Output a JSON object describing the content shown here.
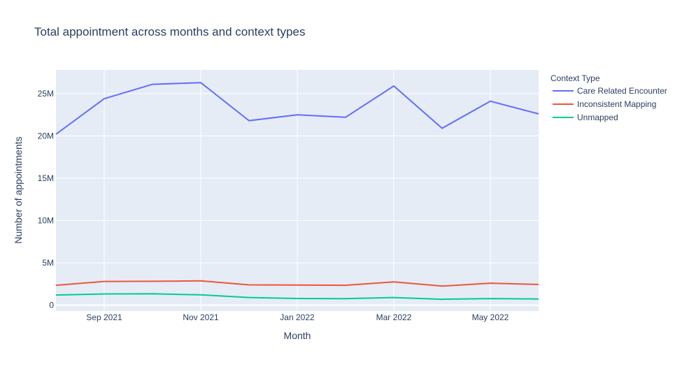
{
  "chart_data": {
    "type": "line",
    "title": "Total appointment across months and context types",
    "xlabel": "Month",
    "ylabel": "Number of appointments",
    "x": [
      "2021-08",
      "2021-09",
      "2021-10",
      "2021-11",
      "2021-12",
      "2022-01",
      "2022-02",
      "2022-03",
      "2022-04",
      "2022-05",
      "2022-06"
    ],
    "xticks": [
      {
        "month_index": 1,
        "label": "Sep 2021"
      },
      {
        "month_index": 3,
        "label": "Nov 2021"
      },
      {
        "month_index": 5,
        "label": "Jan 2022"
      },
      {
        "month_index": 7,
        "label": "Mar 2022"
      },
      {
        "month_index": 9,
        "label": "May 2022"
      }
    ],
    "yticks": [
      {
        "value": 0,
        "label": "0"
      },
      {
        "value": 5000000,
        "label": "5M"
      },
      {
        "value": 10000000,
        "label": "10M"
      },
      {
        "value": 15000000,
        "label": "15M"
      },
      {
        "value": 20000000,
        "label": "20M"
      },
      {
        "value": 25000000,
        "label": "25M"
      }
    ],
    "ylim": [
      -700000,
      27800000
    ],
    "legend": {
      "title": "Context Type",
      "position": "right"
    },
    "grid": true,
    "series": [
      {
        "name": "Care Related Encounter",
        "color": "#636efa",
        "values": [
          20200000,
          24400000,
          26100000,
          26300000,
          21800000,
          22500000,
          22200000,
          25900000,
          20900000,
          24100000,
          22600000
        ]
      },
      {
        "name": "Inconsistent Mapping",
        "color": "#ef553b",
        "values": [
          2350000,
          2800000,
          2820000,
          2870000,
          2400000,
          2380000,
          2350000,
          2750000,
          2250000,
          2600000,
          2450000
        ]
      },
      {
        "name": "Unmapped",
        "color": "#00cc96",
        "values": [
          1200000,
          1320000,
          1340000,
          1220000,
          900000,
          790000,
          770000,
          900000,
          700000,
          780000,
          730000
        ]
      }
    ]
  }
}
